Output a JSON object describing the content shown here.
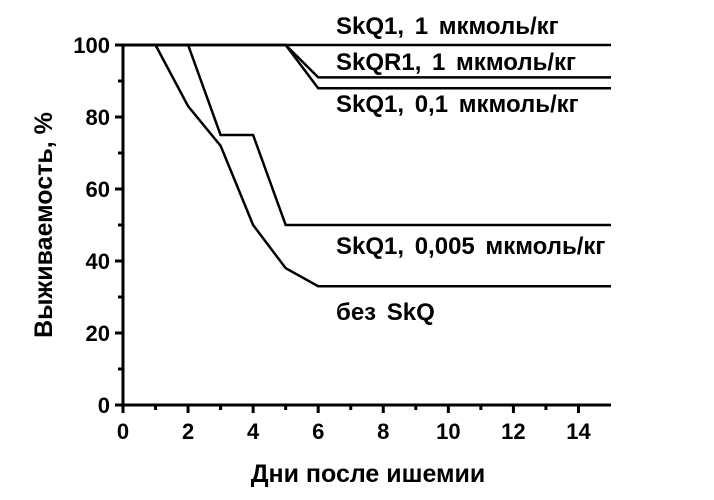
{
  "chart_data": {
    "type": "line",
    "xlabel": "Дни после ишемии",
    "ylabel": "Выживаемость, %",
    "xlim": [
      0,
      15
    ],
    "ylim": [
      0,
      100
    ],
    "x_ticks": [
      "0",
      "2",
      "4",
      "6",
      "8",
      "10",
      "12",
      "14"
    ],
    "y_ticks": [
      "0",
      "20",
      "40",
      "60",
      "80",
      "100"
    ],
    "grid": false,
    "line_color": "#000000",
    "series": [
      {
        "name": "SkQ1, 1 мкмоль/кг",
        "x": [
          0,
          15
        ],
        "y": [
          100,
          100
        ]
      },
      {
        "name": "SkQR1, 1 мкмоль/кг",
        "x": [
          0,
          5,
          6,
          15
        ],
        "y": [
          100,
          100,
          91,
          91
        ]
      },
      {
        "name": "SkQ1, 0,1 мкмоль/кг",
        "x": [
          0,
          5,
          6,
          15
        ],
        "y": [
          100,
          100,
          88,
          88
        ]
      },
      {
        "name": "SkQ1, 0,005 мкмоль/кг",
        "x": [
          0,
          2,
          3,
          4,
          5,
          15
        ],
        "y": [
          100,
          100,
          75,
          75,
          50,
          50
        ]
      },
      {
        "name": "без SkQ",
        "x": [
          0,
          1,
          2,
          3,
          4,
          5,
          6,
          15
        ],
        "y": [
          100,
          100,
          83,
          72,
          50,
          38,
          33,
          33
        ]
      }
    ]
  }
}
